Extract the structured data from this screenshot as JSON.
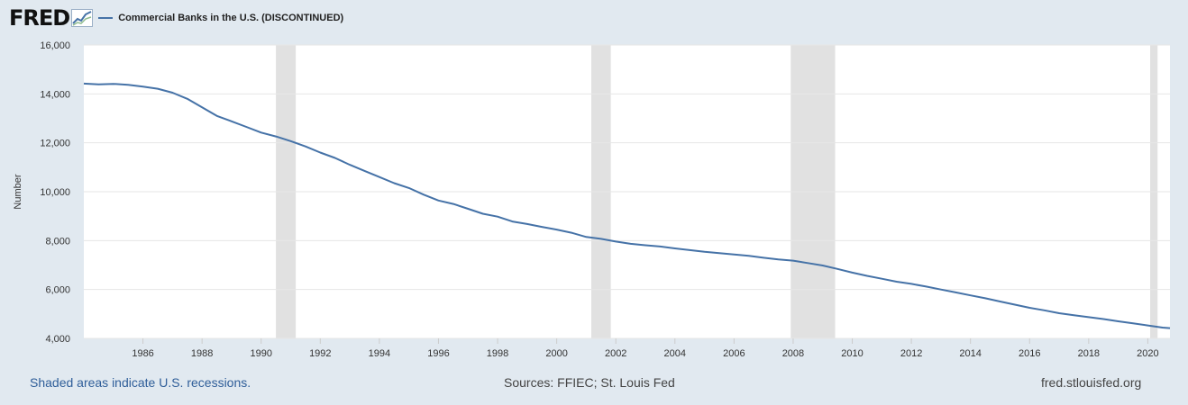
{
  "logo": {
    "text": "FRED"
  },
  "colors": {
    "series": "#4572a7",
    "recession": "#e1e1e1",
    "plot_bg": "#ffffff",
    "page_bg": "#e1e9f0",
    "grid": "#e6e6e6"
  },
  "footer": {
    "left": "Shaded areas indicate U.S. recessions.",
    "center": "Sources: FFIEC; St. Louis Fed",
    "right": "fred.stlouisfed.org"
  },
  "chart_data": {
    "type": "line",
    "title": "",
    "xlabel": "",
    "ylabel": "Number",
    "grid": true,
    "legend": "top-left",
    "xlim": [
      1984.0,
      2020.75
    ],
    "ylim": [
      4000,
      16000
    ],
    "yticks": [
      4000,
      6000,
      8000,
      10000,
      12000,
      14000,
      16000
    ],
    "ytick_labels": [
      "4,000",
      "6,000",
      "8,000",
      "10,000",
      "12,000",
      "14,000",
      "16,000"
    ],
    "xticks": [
      1986,
      1988,
      1990,
      1992,
      1994,
      1996,
      1998,
      2000,
      2002,
      2004,
      2006,
      2008,
      2010,
      2012,
      2014,
      2016,
      2018,
      2020
    ],
    "recessions": [
      [
        1990.5,
        1991.17
      ],
      [
        2001.17,
        2001.83
      ],
      [
        2007.92,
        2009.42
      ],
      [
        2020.08,
        2020.33
      ]
    ],
    "series": [
      {
        "name": "Commercial Banks in the U.S. (DISCONTINUED)",
        "x": [
          1984.0,
          1984.5,
          1985.0,
          1985.5,
          1986.0,
          1986.5,
          1987.0,
          1987.5,
          1988.0,
          1988.5,
          1989.0,
          1989.5,
          1990.0,
          1990.5,
          1991.0,
          1991.5,
          1992.0,
          1992.5,
          1993.0,
          1993.5,
          1994.0,
          1994.5,
          1995.0,
          1995.5,
          1996.0,
          1996.5,
          1997.0,
          1997.5,
          1998.0,
          1998.5,
          1999.0,
          1999.5,
          2000.0,
          2000.5,
          2001.0,
          2001.5,
          2002.0,
          2002.5,
          2003.0,
          2003.5,
          2004.0,
          2004.5,
          2005.0,
          2005.5,
          2006.0,
          2006.5,
          2007.0,
          2007.5,
          2008.0,
          2008.5,
          2009.0,
          2009.5,
          2010.0,
          2010.5,
          2011.0,
          2011.5,
          2012.0,
          2012.5,
          2013.0,
          2013.5,
          2014.0,
          2014.5,
          2015.0,
          2015.5,
          2016.0,
          2016.5,
          2017.0,
          2017.5,
          2018.0,
          2018.5,
          2019.0,
          2019.5,
          2020.0,
          2020.5,
          2020.75
        ],
        "values": [
          14420,
          14390,
          14410,
          14370,
          14300,
          14210,
          14050,
          13800,
          13450,
          13100,
          12880,
          12650,
          12420,
          12260,
          12070,
          11850,
          11600,
          11380,
          11100,
          10850,
          10600,
          10350,
          10150,
          9880,
          9640,
          9500,
          9300,
          9100,
          8980,
          8780,
          8680,
          8560,
          8450,
          8320,
          8150,
          8070,
          7960,
          7870,
          7810,
          7760,
          7680,
          7610,
          7540,
          7490,
          7430,
          7380,
          7300,
          7230,
          7180,
          7080,
          6980,
          6840,
          6690,
          6560,
          6440,
          6320,
          6230,
          6120,
          6000,
          5880,
          5760,
          5640,
          5510,
          5380,
          5250,
          5150,
          5030,
          4950,
          4870,
          4790,
          4700,
          4620,
          4530,
          4440,
          4420
        ]
      }
    ]
  }
}
